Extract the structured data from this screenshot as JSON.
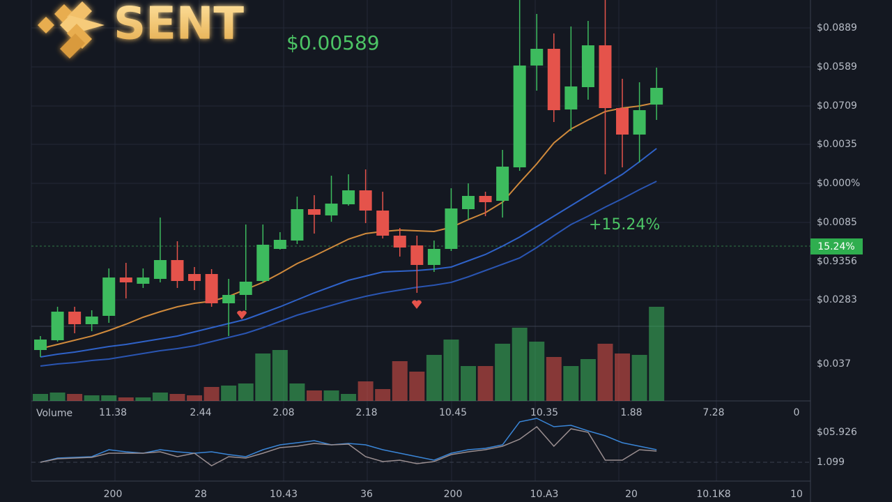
{
  "logo": "SENT",
  "price": "$0.00589",
  "change": "+15.24%",
  "price_tag": "15.24%",
  "volume_label": "Volume",
  "y_axis_labels": [
    "$0.0889",
    "$0.0589",
    "$0.0709",
    "$0.0035",
    "$0.000%",
    "$0.0085",
    "$0.9356",
    "$0.0283",
    "$0.037",
    "$05.926",
    "1.099"
  ],
  "x_axis_labels": [
    "11.38",
    "2.44",
    "2.08",
    "2.18",
    "10.45",
    "10.35",
    "1.88",
    "7.28",
    "0"
  ],
  "x_axis_labels_lower": [
    "200",
    "28",
    "10.43",
    "36",
    "200",
    "10.A3",
    "20",
    "10.1K8",
    "10"
  ],
  "chart_data": {
    "type": "candlestick",
    "ylim": [
      0,
      575
    ],
    "up_color": "#3dbb5e",
    "down_color": "#e5534b",
    "open": [
      73,
      87,
      128,
      110,
      122,
      177,
      168,
      175,
      202,
      182,
      182,
      140,
      152,
      172,
      218,
      230,
      275,
      266,
      282,
      302,
      273,
      237,
      223,
      195,
      218,
      275,
      294,
      287,
      335,
      481,
      505,
      418,
      450,
      510,
      420,
      382,
      425
    ],
    "high": [
      93,
      135,
      135,
      130,
      190,
      198,
      190,
      263,
      229,
      192,
      189,
      175,
      253,
      253,
      242,
      293,
      295,
      323,
      325,
      332,
      300,
      248,
      237,
      230,
      305,
      312,
      300,
      360,
      575,
      555,
      527,
      537,
      545,
      575,
      462,
      457,
      478
    ],
    "low": [
      63,
      85,
      97,
      100,
      112,
      147,
      162,
      170,
      162,
      159,
      135,
      93,
      130,
      170,
      217,
      225,
      240,
      257,
      280,
      255,
      233,
      207,
      155,
      185,
      215,
      260,
      265,
      263,
      330,
      445,
      400,
      387,
      432,
      325,
      335,
      342,
      403
    ],
    "close": [
      88,
      128,
      110,
      121,
      177,
      170,
      177,
      202,
      172,
      172,
      140,
      152,
      171,
      224,
      231,
      275,
      267,
      283,
      302,
      273,
      237,
      220,
      195,
      218,
      276,
      294,
      285,
      336,
      481,
      505,
      417,
      451,
      510,
      420,
      382,
      417,
      449
    ],
    "volume": [
      10,
      12,
      10,
      8,
      8,
      5,
      5,
      12,
      10,
      8,
      20,
      22,
      25,
      68,
      73,
      25,
      15,
      15,
      10,
      28,
      17,
      57,
      42,
      66,
      88,
      50,
      50,
      82,
      105,
      85,
      63,
      50,
      60,
      82,
      68,
      66,
      135
    ],
    "series": [
      {
        "color": "#d08a3c",
        "values": [
          75,
          81,
          87,
          93,
          101,
          110,
          120,
          128,
          135,
          140,
          143,
          150,
          160,
          170,
          183,
          197,
          208,
          220,
          232,
          240,
          243,
          245,
          244,
          243,
          249,
          260,
          270,
          285,
          313,
          340,
          370,
          390,
          403,
          415,
          420,
          423,
          428
        ]
      },
      {
        "color": "#2f62c8",
        "values": [
          63,
          67,
          70,
          74,
          78,
          81,
          85,
          89,
          93,
          99,
          105,
          111,
          117,
          126,
          135,
          145,
          155,
          164,
          173,
          179,
          185,
          186,
          187,
          189,
          192,
          201,
          210,
          222,
          235,
          250,
          265,
          280,
          295,
          310,
          325,
          343,
          362
        ]
      },
      {
        "color": "#2a55b2",
        "values": [
          50,
          53,
          55,
          58,
          60,
          64,
          68,
          72,
          75,
          79,
          85,
          91,
          97,
          105,
          114,
          123,
          130,
          137,
          144,
          150,
          155,
          159,
          163,
          166,
          170,
          178,
          187,
          196,
          205,
          220,
          237,
          253,
          265,
          278,
          290,
          303,
          315
        ]
      }
    ],
    "indicator": {
      "ylim": [
        0,
        90
      ],
      "series": [
        {
          "color": "#3a86d8",
          "values": [
            27,
            33,
            34,
            35,
            45,
            42,
            40,
            45,
            42,
            40,
            42,
            38,
            35,
            45,
            52,
            55,
            58,
            52,
            54,
            52,
            45,
            40,
            35,
            30,
            40,
            45,
            47,
            52,
            85,
            90,
            78,
            80,
            72,
            65,
            55,
            50,
            45
          ]
        },
        {
          "color": "#9a8e90",
          "values": [
            27,
            32,
            33,
            34,
            40,
            40,
            40,
            42,
            35,
            40,
            22,
            35,
            33,
            40,
            48,
            50,
            54,
            52,
            53,
            35,
            28,
            30,
            25,
            28,
            38,
            42,
            45,
            50,
            60,
            78,
            50,
            75,
            70,
            30,
            30,
            45,
            43
          ]
        }
      ]
    }
  }
}
